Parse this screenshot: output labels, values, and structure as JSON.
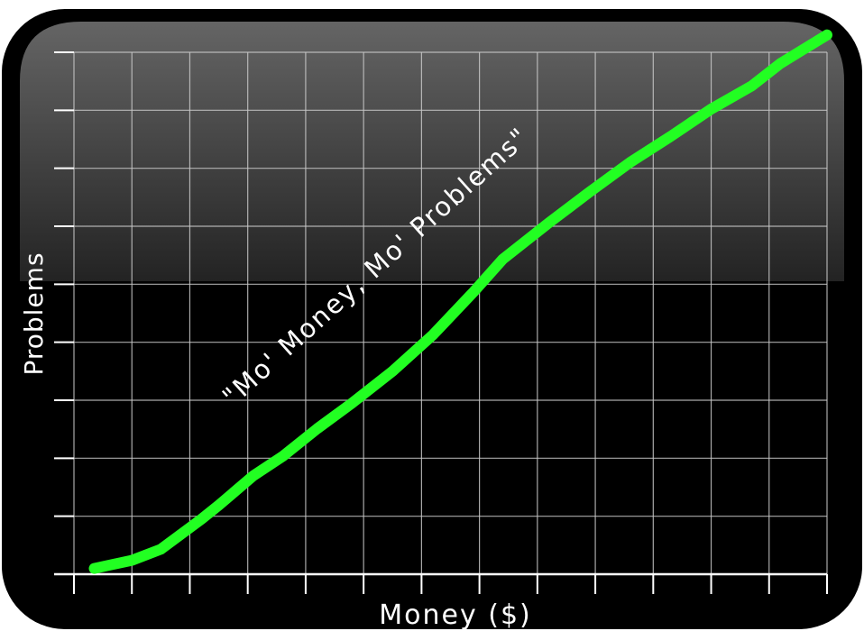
{
  "chart_data": {
    "type": "line",
    "title": "\"Mo' Money, Mo' Problems\"",
    "xlabel": "Money ($)",
    "ylabel": "Problems",
    "xlim": [
      0,
      13
    ],
    "ylim": [
      0,
      9
    ],
    "grid": true,
    "x_ticks": 13,
    "y_ticks": 9,
    "series": [
      {
        "color": "#22ff22",
        "points": [
          [
            0.35,
            0.1
          ],
          [
            1.0,
            0.24
          ],
          [
            1.5,
            0.43
          ],
          [
            2.2,
            0.95
          ],
          [
            2.5,
            1.19
          ],
          [
            3.1,
            1.7
          ],
          [
            3.6,
            2.03
          ],
          [
            4.2,
            2.51
          ],
          [
            4.8,
            2.95
          ],
          [
            5.5,
            3.5
          ],
          [
            6.2,
            4.13
          ],
          [
            6.9,
            4.87
          ],
          [
            7.4,
            5.43
          ],
          [
            8.2,
            6.06
          ],
          [
            8.9,
            6.59
          ],
          [
            9.6,
            7.1
          ],
          [
            10.3,
            7.55
          ],
          [
            11.0,
            8.02
          ],
          [
            11.7,
            8.42
          ],
          [
            12.2,
            8.81
          ],
          [
            13.0,
            9.3
          ]
        ]
      }
    ],
    "colors": {
      "background": "#000000",
      "grid": "#c8c8c8",
      "line": "#22ff22",
      "text": "#ffffff"
    }
  }
}
